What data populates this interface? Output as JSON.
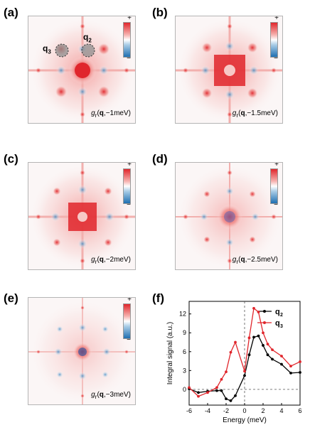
{
  "panels": [
    {
      "id": "a",
      "tag": "(a)",
      "energy": "−1meV"
    },
    {
      "id": "b",
      "tag": "(b)",
      "energy": "−1.5meV"
    },
    {
      "id": "c",
      "tag": "(c)",
      "energy": "−2meV"
    },
    {
      "id": "d",
      "tag": "(d)",
      "energy": "−2.5meV"
    },
    {
      "id": "e",
      "tag": "(e)",
      "energy": "−3meV"
    }
  ],
  "map_label": {
    "func": "g",
    "sub": "r",
    "arg": "q",
    "sep": ","
  },
  "colorbar": {
    "plus": "+",
    "minus": "−",
    "high_color": "#e0262c",
    "low_color": "#1f6fb1"
  },
  "q_markers": {
    "q3": "q",
    "q3_sub": "3",
    "q2": "q",
    "q2_sub": "2"
  },
  "panel_f": {
    "tag": "(f)"
  },
  "chart_data": {
    "type": "line",
    "xlabel": "Energy (meV)",
    "ylabel": "Integral signal (a.u.)",
    "xlim": [
      -6,
      6
    ],
    "ylim": [
      -2.5,
      14
    ],
    "xticks": [
      -6,
      -4,
      -2,
      0,
      2,
      4,
      6
    ],
    "yticks": [
      0,
      3,
      6,
      9,
      12
    ],
    "grid": false,
    "legend_position": "top-right",
    "reference_lines": {
      "vertical_x": 0,
      "horizontal_y": 0
    },
    "series": [
      {
        "name": "q",
        "sub": "2",
        "color": "#000000",
        "x": [
          -6,
          -5,
          -4,
          -3,
          -2.5,
          -2,
          -1.5,
          -1,
          0,
          0.5,
          1,
          1.5,
          2,
          2.5,
          3,
          4,
          5,
          6
        ],
        "y": [
          0.1,
          -0.5,
          -0.3,
          -0.2,
          -0.2,
          -1.5,
          -1.8,
          -1.0,
          2.2,
          5.5,
          8.3,
          8.5,
          7.0,
          5.5,
          4.8,
          4.0,
          2.6,
          2.7
        ]
      },
      {
        "name": "q",
        "sub": "3",
        "color": "#e0262c",
        "x": [
          -6,
          -5,
          -4,
          -3,
          -2.5,
          -2,
          -1.5,
          -1,
          0,
          0.5,
          1,
          1.5,
          2,
          2.5,
          3,
          4,
          5,
          6
        ],
        "y": [
          0.3,
          -1.1,
          -0.5,
          0.3,
          1.6,
          2.8,
          5.9,
          7.5,
          2.9,
          8.2,
          12.9,
          12.3,
          9.0,
          7.2,
          6.3,
          5.3,
          3.7,
          4.4
        ]
      }
    ]
  }
}
